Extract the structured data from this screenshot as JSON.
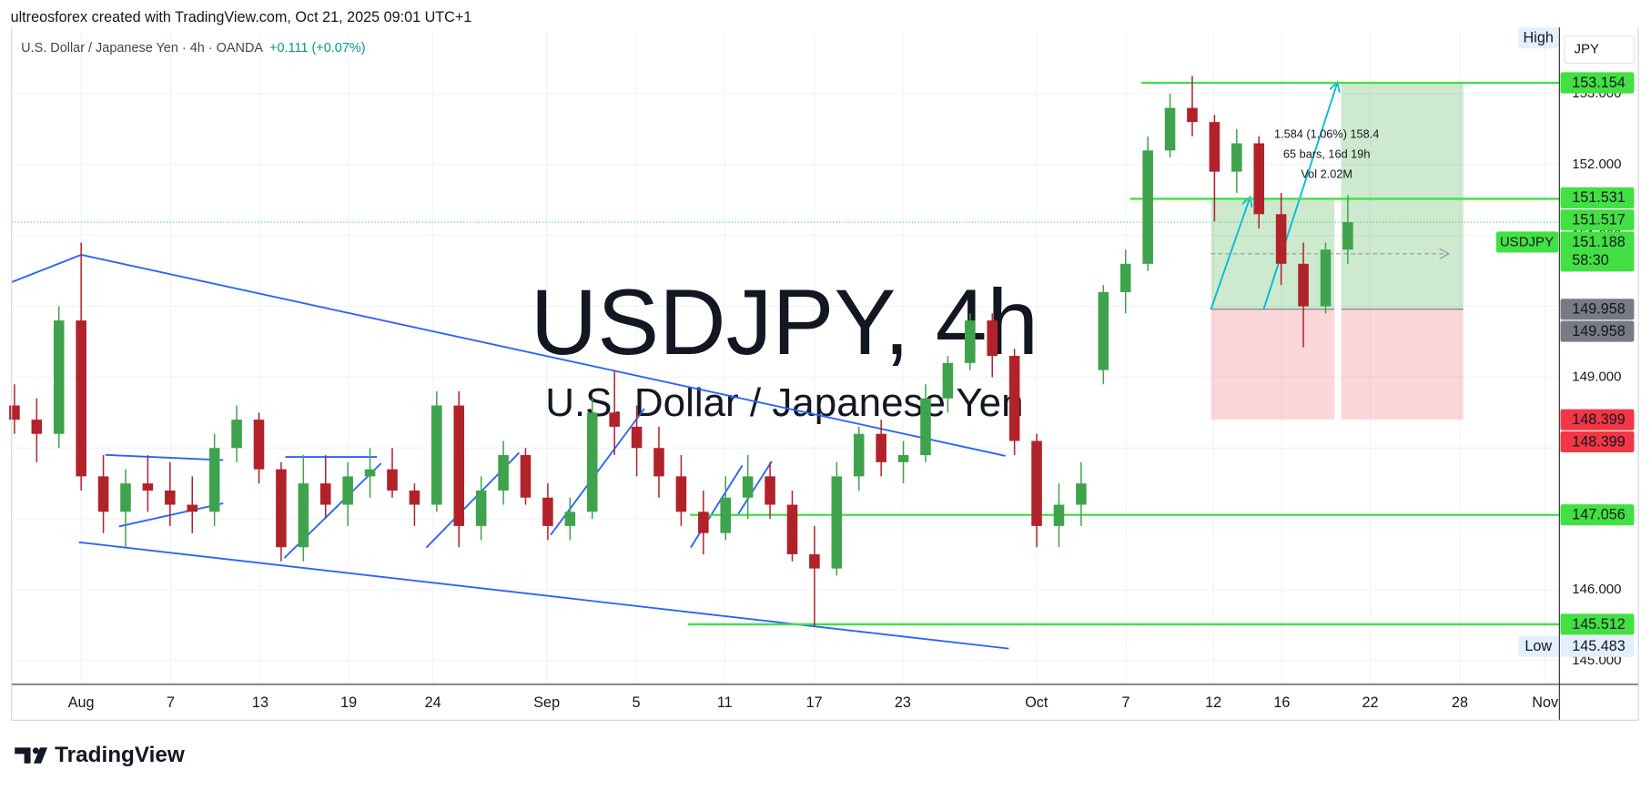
{
  "header": {
    "attribution": "ultreosforex created with TradingView.com, Oct 21, 2025 09:01 UTC+1"
  },
  "footer": {
    "brand": "TradingView"
  },
  "chart_data": {
    "type": "candlestick",
    "legend": {
      "instrument": "U.S. Dollar / Japanese Yen · 4h · OANDA",
      "change": "+0.111 (+0.07%)",
      "change_color": "#089981"
    },
    "watermark": {
      "title": "USDJPY, 4h",
      "subtitle": "U.S. Dollar / Japanese Yen",
      "color": "#f8c4c7"
    },
    "currency": "JPY",
    "up_color": "#3fa34d",
    "down_color": "#b2222a",
    "x": [
      -3,
      -2,
      -1,
      0,
      1,
      2,
      3,
      4,
      5,
      6,
      7,
      8,
      9,
      10,
      11,
      12,
      13,
      14,
      15,
      16,
      17,
      18,
      19,
      20,
      21,
      22,
      23,
      24,
      25,
      26,
      27,
      28,
      29,
      30,
      31,
      32,
      33,
      34,
      35,
      36,
      37,
      38,
      39,
      40,
      41,
      42,
      43,
      44,
      45,
      46,
      47,
      48,
      49,
      50,
      51,
      52,
      53,
      54,
      55,
      56,
      57
    ],
    "open": [
      148.6,
      148.4,
      148.2,
      149.8,
      147.6,
      147.1,
      147.5,
      147.4,
      147.2,
      147.1,
      148.0,
      148.4,
      147.7,
      146.6,
      147.5,
      147.2,
      147.6,
      147.7,
      147.4,
      147.2,
      148.6,
      146.9,
      147.4,
      147.9,
      147.3,
      146.9,
      147.1,
      148.5,
      148.3,
      148.0,
      147.6,
      147.1,
      146.8,
      147.3,
      147.6,
      147.2,
      146.5,
      146.3,
      147.6,
      148.2,
      147.8,
      147.9,
      148.7,
      149.2,
      149.8,
      149.3,
      148.1,
      146.9,
      147.2,
      149.1,
      150.2,
      150.6,
      152.2,
      152.8,
      152.6,
      151.9,
      152.3,
      151.3,
      150.6,
      150.0,
      150.8
    ],
    "high": [
      148.9,
      148.7,
      150.0,
      150.9,
      147.9,
      147.7,
      147.9,
      147.8,
      147.6,
      148.2,
      148.6,
      148.5,
      147.8,
      147.9,
      147.9,
      147.8,
      148.0,
      148.0,
      147.5,
      148.8,
      148.8,
      147.6,
      148.1,
      148.0,
      147.5,
      147.3,
      148.7,
      149.1,
      148.6,
      148.3,
      147.9,
      147.4,
      147.6,
      147.9,
      147.8,
      147.4,
      146.9,
      147.8,
      148.3,
      148.4,
      148.1,
      148.9,
      149.3,
      149.9,
      149.9,
      149.4,
      148.2,
      147.5,
      147.8,
      150.3,
      150.8,
      152.4,
      153.0,
      153.25,
      152.7,
      152.5,
      152.4,
      151.6,
      150.9,
      150.9,
      151.57
    ],
    "low": [
      148.2,
      147.8,
      148.0,
      147.4,
      146.8,
      146.6,
      147.1,
      146.9,
      146.8,
      146.9,
      147.8,
      147.5,
      146.4,
      146.4,
      147.0,
      146.9,
      147.3,
      147.3,
      146.9,
      147.1,
      146.6,
      146.7,
      147.2,
      147.2,
      146.7,
      146.7,
      147.0,
      147.9,
      147.6,
      147.3,
      146.9,
      146.5,
      146.7,
      147.0,
      147.0,
      146.4,
      145.483,
      146.2,
      147.4,
      147.6,
      147.5,
      147.8,
      148.5,
      149.1,
      149.0,
      147.9,
      146.6,
      146.6,
      146.9,
      148.9,
      149.9,
      150.5,
      152.1,
      152.4,
      151.2,
      151.6,
      151.1,
      150.3,
      149.42,
      149.9,
      150.6
    ],
    "close": [
      148.4,
      148.2,
      149.8,
      147.6,
      147.1,
      147.5,
      147.4,
      147.2,
      147.1,
      148.0,
      148.4,
      147.7,
      146.6,
      147.5,
      147.2,
      147.6,
      147.7,
      147.4,
      147.2,
      148.6,
      146.9,
      147.4,
      147.9,
      147.3,
      146.9,
      147.1,
      148.5,
      148.3,
      148.0,
      147.6,
      147.1,
      146.8,
      147.3,
      147.6,
      147.2,
      146.5,
      146.3,
      147.6,
      148.2,
      147.8,
      147.9,
      148.7,
      149.2,
      149.8,
      149.3,
      148.1,
      146.9,
      147.2,
      147.5,
      150.2,
      150.6,
      152.2,
      152.8,
      152.6,
      151.9,
      152.3,
      151.3,
      150.6,
      150.0,
      150.8,
      151.188
    ],
    "xlim": [
      -3.13,
      66.52
    ],
    "ylim": [
      144.664,
      153.877
    ],
    "xticks": [
      {
        "value": 0,
        "label": "Aug"
      },
      {
        "value": 4.03,
        "label": "7"
      },
      {
        "value": 8.06,
        "label": "13"
      },
      {
        "value": 12.04,
        "label": "19"
      },
      {
        "value": 15.83,
        "label": "24"
      },
      {
        "value": 20.95,
        "label": "Sep"
      },
      {
        "value": 24.98,
        "label": "5"
      },
      {
        "value": 28.96,
        "label": "11"
      },
      {
        "value": 32.99,
        "label": "17"
      },
      {
        "value": 36.97,
        "label": "23"
      },
      {
        "value": 42.99,
        "label": "Oct"
      },
      {
        "value": 47.01,
        "label": "7"
      },
      {
        "value": 50.95,
        "label": "12"
      },
      {
        "value": 54.03,
        "label": "16"
      },
      {
        "value": 58.01,
        "label": "22"
      },
      {
        "value": 62.04,
        "label": "28"
      },
      {
        "value": 65.88,
        "label": "Nov"
      }
    ],
    "yticks": [
      {
        "value": 145,
        "label": "145.000"
      },
      {
        "value": 146,
        "label": "146.000"
      },
      {
        "value": 147,
        "label": "147.000"
      },
      {
        "value": 148,
        "label": "148.000"
      },
      {
        "value": 149,
        "label": "149.000"
      },
      {
        "value": 150,
        "label": "150.000"
      },
      {
        "value": 151,
        "label": "151.000"
      },
      {
        "value": 152,
        "label": "152.000"
      },
      {
        "value": 153,
        "label": "153.000"
      }
    ],
    "grid": true,
    "hlines": [
      {
        "value": 153.154,
        "from": 47.7
      },
      {
        "value": 151.517,
        "from": 47.2
      },
      {
        "value": 147.056,
        "from": 27.4
      },
      {
        "value": 145.512,
        "from": 27.3
      }
    ],
    "line_color": "#42e042",
    "positions": [
      {
        "entry": 149.958,
        "stop": 148.399,
        "target": 151.531,
        "from": 50.85,
        "to": 56.4
      },
      {
        "entry": 149.958,
        "stop": 148.399,
        "target": 153.154,
        "from": 56.7,
        "to": 62.2
      }
    ],
    "measure": [
      "1.584 (1.06%) 158.4",
      "65 bars, 16d 19h",
      "Vol 2.02M"
    ],
    "price_tags": [
      {
        "value": 153.154,
        "color": "#42e042",
        "text_color": "#000000"
      },
      {
        "value": 151.531,
        "color": "#42e042",
        "text_color": "#000000"
      },
      {
        "value": 151.517,
        "color": "#42e042",
        "text_color": "#000000"
      },
      {
        "value": 149.958,
        "color": "#787b86",
        "text_color": "#ffffff"
      },
      {
        "value": 149.958,
        "color": "#787b86",
        "text_color": "#ffffff"
      },
      {
        "value": 148.399,
        "color": "#f23645",
        "text_color": "#ffffff"
      },
      {
        "value": 148.399,
        "color": "#f23645",
        "text_color": "#ffffff"
      },
      {
        "value": 147.056,
        "color": "#42e042",
        "text_color": "#000000"
      },
      {
        "value": 145.512,
        "color": "#42e042",
        "text_color": "#000000"
      }
    ],
    "last_price": {
      "symbol": "USDJPY",
      "value": 151.188,
      "countdown": "58:30",
      "color": "#42e042"
    },
    "high_label": "High",
    "low_tag": {
      "label": "Low",
      "value": 145.483,
      "color": "#e3effd"
    }
  }
}
